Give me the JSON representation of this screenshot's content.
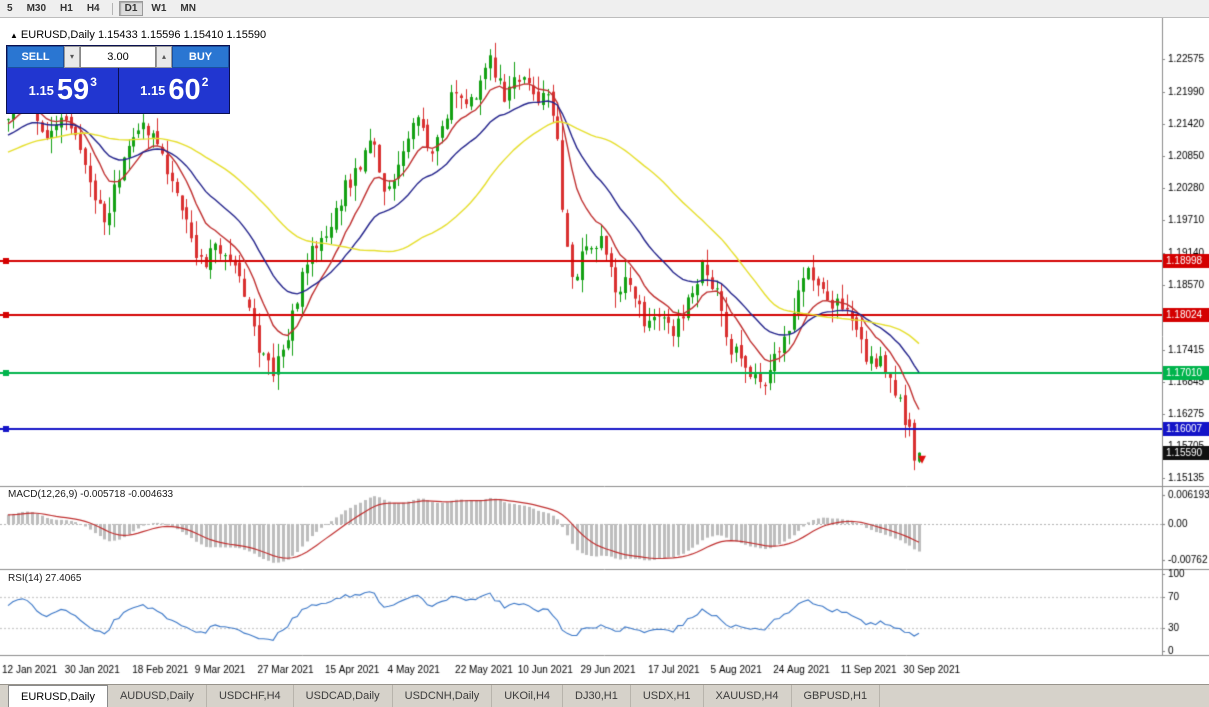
{
  "toolbar": {
    "timeframes": [
      "5",
      "M30",
      "H1",
      "H4",
      "D1",
      "W1",
      "MN"
    ],
    "active": "D1"
  },
  "chart": {
    "marker": "▲",
    "title": "EURUSD,Daily",
    "ohlc": "1.15433 1.15596 1.15410 1.15590"
  },
  "trade_panel": {
    "sell_label": "SELL",
    "buy_label": "BUY",
    "lot_size": "3.00",
    "lot_down_icon": "▾",
    "lot_up_icon": "▴",
    "sell_price_small": "1.15",
    "sell_price_big": "59",
    "sell_price_sup": "3",
    "buy_price_small": "1.15",
    "buy_price_big": "60",
    "buy_price_sup": "2"
  },
  "macd": {
    "label": "MACD(12,26,9)",
    "values": "-0.005718 -0.004633"
  },
  "rsi": {
    "label": "RSI(14)",
    "value": "27.4065"
  },
  "date_axis": [
    "12 Jan 2021",
    "30 Jan 2021",
    "18 Feb 2021",
    "9 Mar 2021",
    "27 Mar 2021",
    "15 Apr 2021",
    "4 May 2021",
    "22 May 2021",
    "10 Jun 2021",
    "29 Jun 2021",
    "17 Jul 2021",
    "5 Aug 2021",
    "24 Aug 2021",
    "11 Sep 2021",
    "30 Sep 2021"
  ],
  "tabs": [
    "EURUSD,Daily",
    "AUDUSD,Daily",
    "USDCHF,H4",
    "USDCAD,Daily",
    "USDCNH,Daily",
    "UKOil,H4",
    "DJ30,H1",
    "USDX,H1",
    "XAUUSD,H4",
    "GBPUSD,H1"
  ],
  "chart_data": {
    "type": "candlestick",
    "symbol": "EURUSD",
    "timeframe": "Daily",
    "bar_count": 190,
    "pre_bars": 60,
    "pre_start": 1.1985,
    "seed": 11,
    "price_range": [
      1.15,
      1.233
    ],
    "price_axis": [
      "1.22575",
      "1.21990",
      "1.21420",
      "1.20850",
      "1.20280",
      "1.19710",
      "1.19140",
      "1.18570",
      "1.17415",
      "1.16845",
      "1.16275",
      "1.15705",
      "1.15135"
    ],
    "price_anchors": [
      [
        0,
        1.2155
      ],
      [
        3,
        1.2195
      ],
      [
        8,
        1.2115
      ],
      [
        12,
        1.216
      ],
      [
        16,
        1.2075
      ],
      [
        20,
        1.1968
      ],
      [
        25,
        1.211
      ],
      [
        28,
        1.215
      ],
      [
        33,
        1.2065
      ],
      [
        36,
        1.1985
      ],
      [
        40,
        1.1892
      ],
      [
        44,
        1.1925
      ],
      [
        48,
        1.1878
      ],
      [
        52,
        1.174
      ],
      [
        55,
        1.1706
      ],
      [
        58,
        1.1772
      ],
      [
        62,
        1.1898
      ],
      [
        66,
        1.1952
      ],
      [
        70,
        1.203
      ],
      [
        74,
        1.2085
      ],
      [
        76,
        1.212
      ],
      [
        78,
        1.2022
      ],
      [
        82,
        1.209
      ],
      [
        85,
        1.215
      ],
      [
        88,
        1.2078
      ],
      [
        92,
        1.2195
      ],
      [
        96,
        1.2185
      ],
      [
        100,
        1.2252
      ],
      [
        103,
        1.2192
      ],
      [
        106,
        1.2222
      ],
      [
        110,
        1.218
      ],
      [
        112,
        1.2208
      ],
      [
        114,
        1.2118
      ],
      [
        115,
        1.1998
      ],
      [
        116,
        1.1922
      ],
      [
        117,
        1.1865
      ],
      [
        120,
        1.1922
      ],
      [
        123,
        1.1932
      ],
      [
        126,
        1.1852
      ],
      [
        129,
        1.1868
      ],
      [
        132,
        1.1795
      ],
      [
        134,
        1.1812
      ],
      [
        138,
        1.1772
      ],
      [
        142,
        1.1852
      ],
      [
        144,
        1.1888
      ],
      [
        147,
        1.1838
      ],
      [
        150,
        1.1742
      ],
      [
        154,
        1.1705
      ],
      [
        157,
        1.1668
      ],
      [
        160,
        1.1748
      ],
      [
        163,
        1.1802
      ],
      [
        166,
        1.1892
      ],
      [
        169,
        1.1842
      ],
      [
        172,
        1.1818
      ],
      [
        175,
        1.1806
      ],
      [
        178,
        1.1734
      ],
      [
        181,
        1.1722
      ],
      [
        183,
        1.1702
      ],
      [
        185,
        1.1642
      ],
      [
        186,
        1.1602
      ],
      [
        187,
        1.1606
      ],
      [
        188,
        1.158
      ],
      [
        189,
        1.1559
      ]
    ],
    "bar_overrides": [
      {
        "i": 187,
        "o": 1.1618,
        "h": 1.163,
        "l": 1.1588,
        "c": 1.1605
      },
      {
        "i": 188,
        "o": 1.1612,
        "h": 1.1618,
        "l": 1.1528,
        "c": 1.1545
      },
      {
        "i": 189,
        "o": 1.15433,
        "h": 1.15596,
        "l": 1.1541,
        "c": 1.1559
      }
    ],
    "moving_averages": [
      {
        "period": 10,
        "type": "ema",
        "color": "#c03030"
      },
      {
        "period": 24,
        "type": "ema",
        "color": "#24248c"
      },
      {
        "period": 45,
        "type": "sma",
        "color": "#e6df2e"
      }
    ],
    "colors": {
      "bull": "#13a113",
      "bear": "#d93030",
      "macd_hist": "#bdbdbd",
      "macd_signal": "#c03030",
      "rsi_line": "#3c78c8"
    },
    "hlines": [
      {
        "label": "1.18998",
        "price": 1.18998,
        "color": "#d40000"
      },
      {
        "label": "1.18024",
        "price": 1.18024,
        "color": "#d40000"
      },
      {
        "label": "1.17010",
        "price": 1.1701,
        "color": "#00b44c"
      },
      {
        "label": "1.16007",
        "price": 1.16007,
        "color": "#1414c8"
      }
    ],
    "current_price": {
      "label": "1.15590",
      "price": 1.1559,
      "color": "#101010"
    },
    "macd_range": [
      0.0078,
      -0.0095
    ],
    "macd_axis": [
      {
        "label": "0.006193",
        "value": 0.006193
      },
      {
        "label": "0.00",
        "value": 0
      },
      {
        "label": "-0.00762",
        "value": -0.00762
      }
    ],
    "rsi_axis": [
      {
        "label": "100",
        "value": 100
      },
      {
        "label": "70",
        "value": 70
      },
      {
        "label": "30",
        "value": 30
      },
      {
        "label": "0",
        "value": 0
      }
    ],
    "rsi_levels": [
      70,
      30
    ],
    "sell_arrow": {
      "index": 189,
      "price": 1.1545
    }
  }
}
